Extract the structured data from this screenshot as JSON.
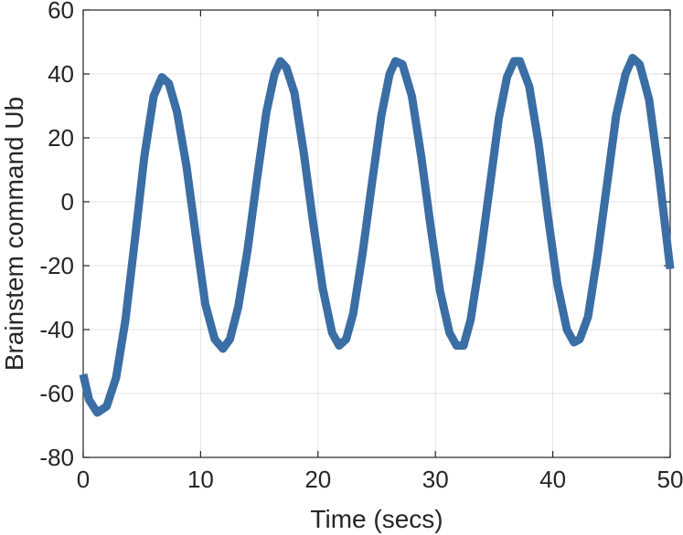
{
  "chart_data": {
    "type": "line",
    "title": "",
    "xlabel": "Time (secs)",
    "ylabel": "Brainstem command Ub",
    "xlim": [
      0,
      50
    ],
    "ylim": [
      -80,
      60
    ],
    "xticks": [
      0,
      10,
      20,
      30,
      40,
      50
    ],
    "yticks": [
      -80,
      -60,
      -40,
      -20,
      0,
      20,
      40,
      60
    ],
    "grid": true,
    "line_color": "#3a6ea5",
    "series": [
      {
        "values": [
          [
            0,
            -54
          ],
          [
            0.5,
            -62
          ],
          [
            1.2,
            -66
          ],
          [
            2,
            -64
          ],
          [
            2.8,
            -55
          ],
          [
            3.6,
            -37
          ],
          [
            4.4,
            -12
          ],
          [
            5.2,
            14
          ],
          [
            6.0,
            33
          ],
          [
            6.7,
            39
          ],
          [
            7.3,
            37
          ],
          [
            8.0,
            28
          ],
          [
            8.8,
            11
          ],
          [
            9.6,
            -11
          ],
          [
            10.4,
            -32
          ],
          [
            11.2,
            -43
          ],
          [
            11.9,
            -46
          ],
          [
            12.5,
            -43
          ],
          [
            13.2,
            -33
          ],
          [
            14.0,
            -15
          ],
          [
            14.8,
            7
          ],
          [
            15.6,
            28
          ],
          [
            16.3,
            40
          ],
          [
            16.8,
            44
          ],
          [
            17.3,
            42
          ],
          [
            18.0,
            34
          ],
          [
            18.8,
            15
          ],
          [
            19.6,
            -7
          ],
          [
            20.4,
            -27
          ],
          [
            21.2,
            -41
          ],
          [
            21.8,
            -45
          ],
          [
            22.4,
            -43
          ],
          [
            23.0,
            -35
          ],
          [
            23.8,
            -16
          ],
          [
            24.6,
            6
          ],
          [
            25.4,
            27
          ],
          [
            26.1,
            40
          ],
          [
            26.6,
            44
          ],
          [
            27.2,
            43
          ],
          [
            28.0,
            33
          ],
          [
            28.8,
            14
          ],
          [
            29.6,
            -8
          ],
          [
            30.4,
            -28
          ],
          [
            31.2,
            -41
          ],
          [
            31.8,
            -45
          ],
          [
            32.4,
            -45
          ],
          [
            33.0,
            -37
          ],
          [
            33.8,
            -18
          ],
          [
            34.6,
            4
          ],
          [
            35.4,
            26
          ],
          [
            36.1,
            39
          ],
          [
            36.7,
            44
          ],
          [
            37.2,
            44
          ],
          [
            38.0,
            36
          ],
          [
            38.8,
            18
          ],
          [
            39.6,
            -5
          ],
          [
            40.4,
            -26
          ],
          [
            41.2,
            -40
          ],
          [
            41.8,
            -44
          ],
          [
            42.3,
            -43
          ],
          [
            43.0,
            -36
          ],
          [
            43.8,
            -17
          ],
          [
            44.6,
            5
          ],
          [
            45.4,
            27
          ],
          [
            46.2,
            40
          ],
          [
            46.8,
            45
          ],
          [
            47.4,
            43
          ],
          [
            48.2,
            32
          ],
          [
            49.0,
            10
          ],
          [
            50.0,
            -21
          ]
        ]
      }
    ]
  }
}
